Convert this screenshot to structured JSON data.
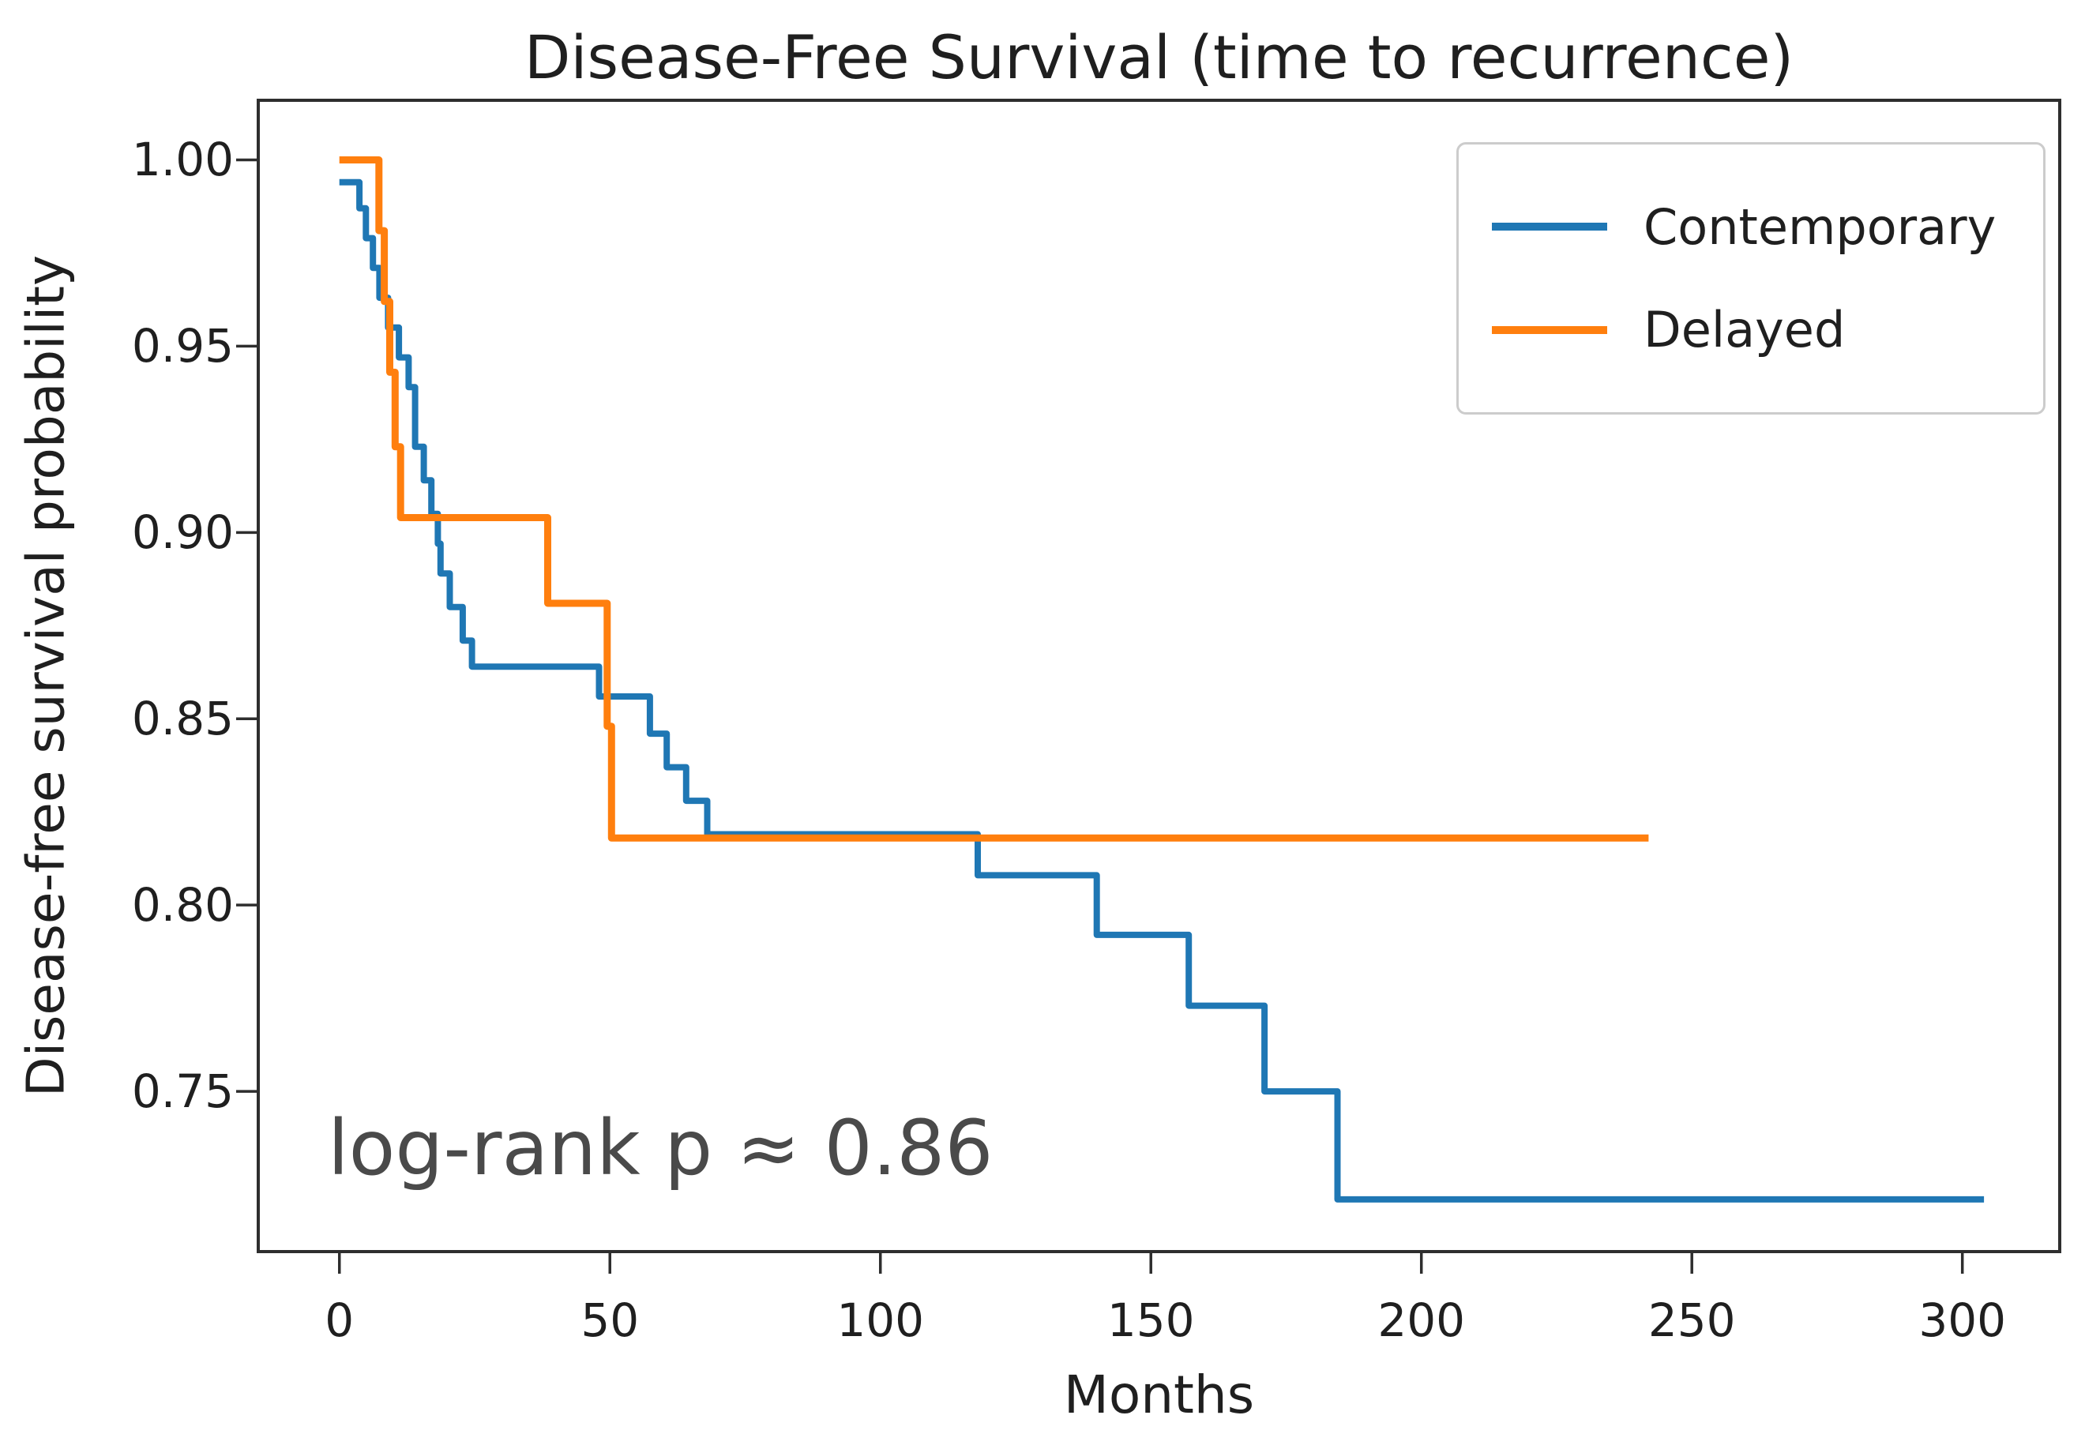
{
  "figure": {
    "title": "Disease-Free Survival (time to recurrence)",
    "x_label": "Months",
    "y_label": "Disease-free survival probability",
    "annotation": "log-rank p ≈ 0.86"
  },
  "legend": {
    "entries": [
      {
        "label": "Contemporary",
        "color": "#1f77b4"
      },
      {
        "label": "Delayed",
        "color": "#ff7f0e"
      }
    ]
  },
  "colors": {
    "contemporary": "#1f77b4",
    "delayed": "#ff7f0e",
    "spine": "#2e2e2e",
    "axis_text": "#1f1f1f",
    "annotation_text": "#4a4a4a"
  },
  "chart_data": {
    "type": "line",
    "subtype": "kaplan-meier-step",
    "title": "Disease-Free Survival (time to recurrence)",
    "xlabel": "Months",
    "ylabel": "Disease-free survival probability",
    "xlim": [
      -15,
      318
    ],
    "ylim": [
      0.707,
      1.016
    ],
    "grid": false,
    "legend_position": "upper right",
    "x_ticks": [
      0,
      50,
      100,
      150,
      200,
      250,
      300
    ],
    "y_ticks": [
      {
        "label": "1.00",
        "value": 1.0
      },
      {
        "label": "0.95",
        "value": 0.95
      },
      {
        "label": "0.90",
        "value": 0.9
      },
      {
        "label": "0.85",
        "value": 0.85
      },
      {
        "label": "0.80",
        "value": 0.8
      },
      {
        "label": "0.75",
        "value": 0.75
      }
    ],
    "annotation": {
      "text": "log-rank p ≈ 0.86",
      "x_month": -2.2,
      "y_prob": 0.745
    },
    "series": [
      {
        "name": "Contemporary",
        "color": "#1f77b4",
        "stroke_width": 8,
        "start": [
          0,
          0.994
        ],
        "steps": [
          [
            3.7,
            0.987
          ],
          [
            4.9,
            0.979
          ],
          [
            6.2,
            0.971
          ],
          [
            7.4,
            0.963
          ],
          [
            9.0,
            0.955
          ],
          [
            11.0,
            0.947
          ],
          [
            12.8,
            0.939
          ],
          [
            14.0,
            0.923
          ],
          [
            15.6,
            0.914
          ],
          [
            17.0,
            0.905
          ],
          [
            18.2,
            0.897
          ],
          [
            18.7,
            0.889
          ],
          [
            20.4,
            0.88
          ],
          [
            22.8,
            0.871
          ],
          [
            24.5,
            0.864
          ],
          [
            48.0,
            0.856
          ],
          [
            57.4,
            0.846
          ],
          [
            60.5,
            0.837
          ],
          [
            64.1,
            0.828
          ],
          [
            68.0,
            0.819
          ],
          [
            118.0,
            0.808
          ],
          [
            140.0,
            0.792
          ],
          [
            157.0,
            0.773
          ],
          [
            171.0,
            0.75
          ],
          [
            184.5,
            0.721
          ]
        ],
        "end_x": 304
      },
      {
        "name": "Delayed",
        "color": "#ff7f0e",
        "stroke_width": 9,
        "start": [
          0,
          1.0
        ],
        "steps": [
          [
            7.3,
            0.981
          ],
          [
            8.3,
            0.962
          ],
          [
            9.3,
            0.943
          ],
          [
            10.3,
            0.923
          ],
          [
            11.3,
            0.904
          ],
          [
            38.5,
            0.881
          ],
          [
            49.5,
            0.848
          ],
          [
            50.3,
            0.818
          ]
        ],
        "end_x": 242
      }
    ]
  }
}
